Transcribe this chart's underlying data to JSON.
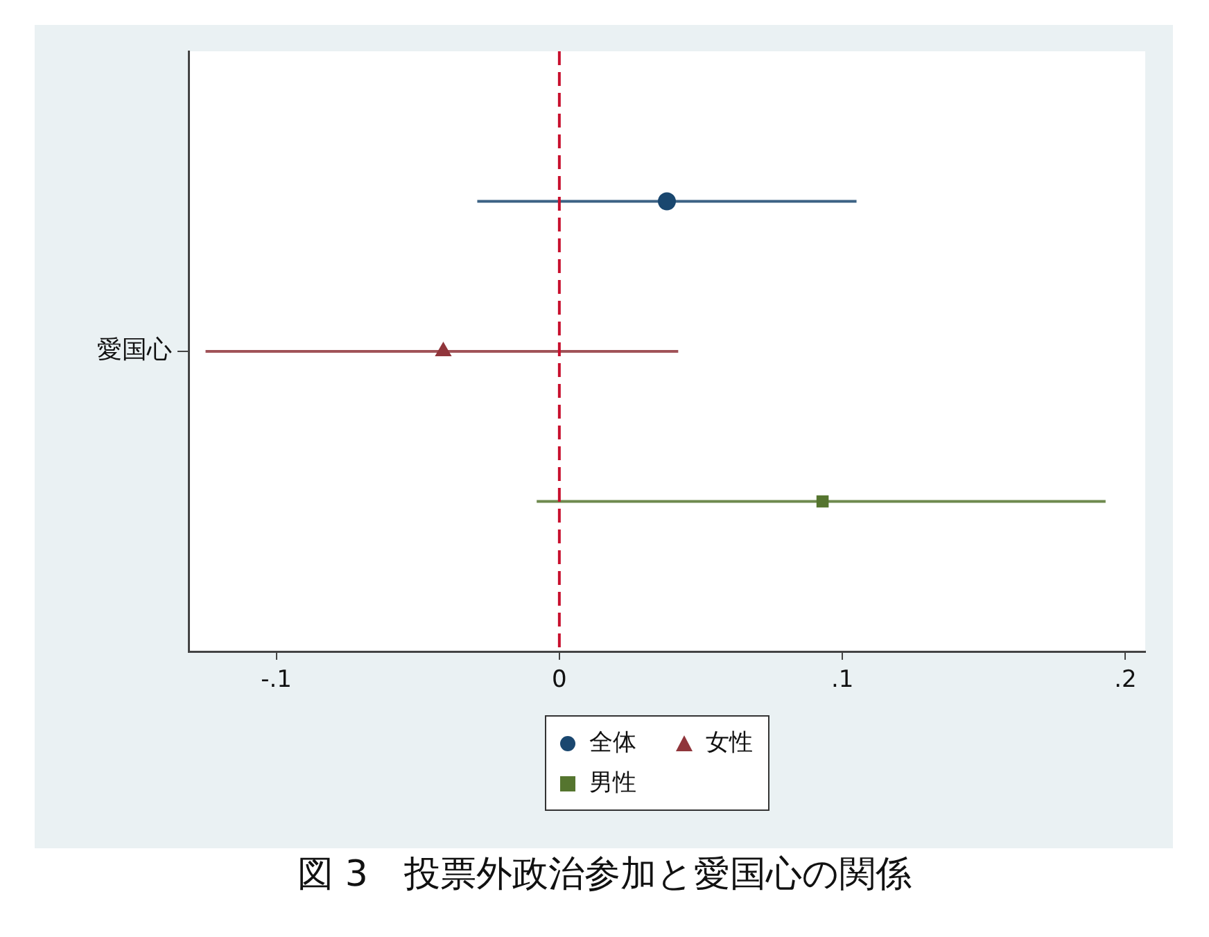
{
  "chart_data": {
    "type": "scatter",
    "title": "図 3　投票外政治参加と愛国心の関係",
    "orientation": "horizontal",
    "categories": [
      null,
      "愛国心",
      null
    ],
    "series": [
      {
        "name": "全体",
        "color": "#1a476f",
        "marker": "circle",
        "values": [
          0.038,
          null,
          null
        ],
        "errors": [
          [
            -0.029,
            0.105
          ],
          null,
          null
        ]
      },
      {
        "name": "女性",
        "color": "#90353b",
        "marker": "triangle",
        "values": [
          null,
          -0.041,
          null
        ],
        "errors": [
          null,
          [
            -0.125,
            0.042
          ],
          null
        ]
      },
      {
        "name": "男性",
        "color": "#55752f",
        "marker": "square",
        "values": [
          null,
          null,
          0.093
        ],
        "errors": [
          null,
          null,
          [
            -0.008,
            0.193
          ]
        ]
      }
    ],
    "xlim": [
      -0.131,
      0.207
    ],
    "xticks": [
      {
        "value": -0.1,
        "label": "-.1"
      },
      0,
      {
        "value": 0.1,
        "label": ".1"
      },
      {
        "value": 0.2,
        "label": ".2"
      }
    ],
    "ref_lines": [
      {
        "axis": "x",
        "value": 0,
        "color": "#c8102e",
        "line_style": "dashed"
      }
    ],
    "legend": "bottom"
  }
}
